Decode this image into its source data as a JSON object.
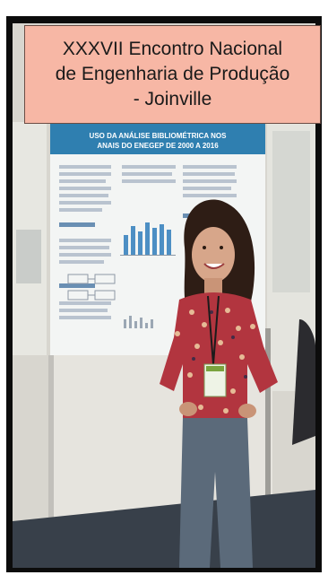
{
  "caption": {
    "line1": "XXXVII Encontro Nacional",
    "line2": "de Engenharia de Produção",
    "line3": "- Joinville"
  },
  "poster": {
    "title_line1": "USO DA ANÁLISE BIBLIOMÉTRICA NOS",
    "title_line2": "ANAIS DO ENEGEP DE 2000 A 2016"
  },
  "colors": {
    "caption_background": "#f7b7a5",
    "frame": "#0c0c0c",
    "poster_banner": "#2f7fb0"
  }
}
